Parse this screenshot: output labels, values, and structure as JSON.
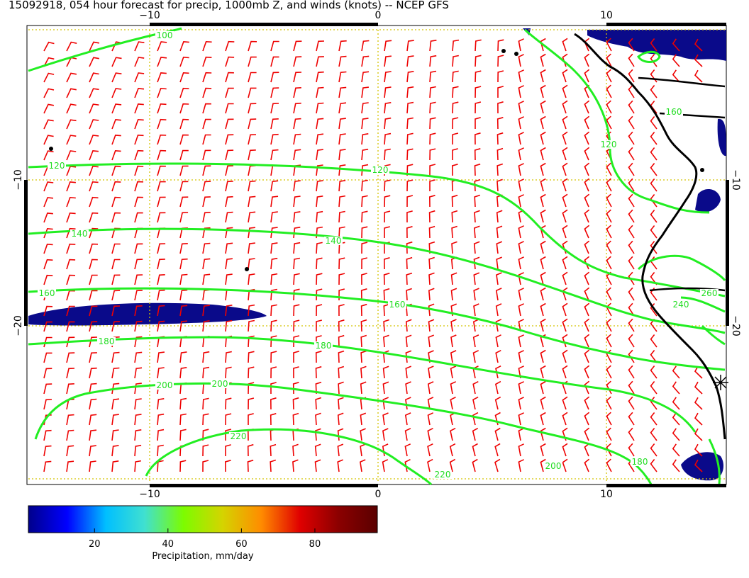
{
  "title": "15092918, 054 hour forecast for precip, 1000mb Z, and winds (knots) -- NCEP GFS",
  "axes": {
    "x_bottom_ticks": [
      "−10",
      "0",
      "10"
    ],
    "x_top_ticks": [
      "−10",
      "0",
      "10"
    ],
    "y_left_ticks": [
      "−10",
      "−20"
    ],
    "y_right_ticks": [
      "−10",
      "−20"
    ]
  },
  "contours": {
    "color": "#22ee22",
    "levels": [
      {
        "value": 100,
        "labels": [
          "100"
        ]
      },
      {
        "value": 120,
        "labels": [
          "120",
          "120",
          "120"
        ]
      },
      {
        "value": 140,
        "labels": [
          "140",
          "140"
        ]
      },
      {
        "value": 160,
        "labels": [
          "160",
          "160",
          "160"
        ]
      },
      {
        "value": 180,
        "labels": [
          "180",
          "180",
          "180"
        ]
      },
      {
        "value": 200,
        "labels": [
          "200",
          "200",
          "200"
        ]
      },
      {
        "value": 220,
        "labels": [
          "220",
          "220"
        ]
      },
      {
        "value": 240,
        "labels": [
          "240"
        ]
      },
      {
        "value": 260,
        "labels": [
          "260"
        ]
      }
    ]
  },
  "wind_barbs": {
    "color": "#ee0000",
    "units": "knots"
  },
  "colorbar": {
    "label": "Precipitation, mm/day",
    "ticks": [
      "20",
      "40",
      "60",
      "80"
    ],
    "tick_values": [
      20,
      40,
      60,
      80
    ],
    "range": [
      2,
      97
    ],
    "colors": [
      "#00008b",
      "#0000ff",
      "#00bfff",
      "#40e0d0",
      "#7cfc00",
      "#d4d400",
      "#ff8c00",
      "#e00000",
      "#8b0000",
      "#5a0000"
    ]
  },
  "colors": {
    "coastline": "#000000",
    "gridline": "#d4c400",
    "precip_low": "#0a0a8a"
  },
  "marker_icon": "asterisk-icon"
}
